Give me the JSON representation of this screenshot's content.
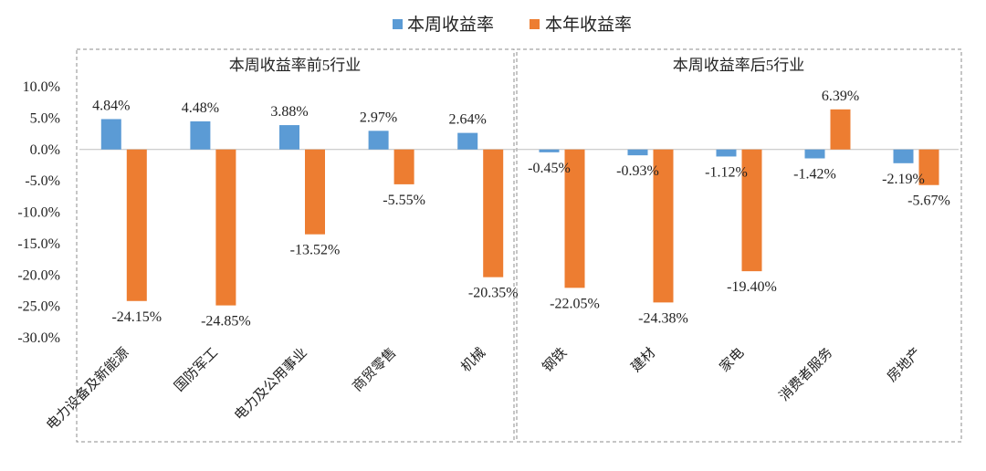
{
  "legend": {
    "weekly": "本周收益率",
    "yearly": "本年收益率"
  },
  "colors": {
    "weekly": "#5B9BD5",
    "yearly": "#ED7D31",
    "grid": "#BFBFBF",
    "panel_border": "#8C8C8C"
  },
  "chart_data": {
    "type": "bar",
    "ylim": [
      -30,
      10
    ],
    "y_ticks": [
      "10.0%",
      "5.0%",
      "0.0%",
      "-5.0%",
      "-10.0%",
      "-15.0%",
      "-20.0%",
      "-25.0%",
      "-30.0%"
    ],
    "y_tick_values": [
      10,
      5,
      0,
      -5,
      -10,
      -15,
      -20,
      -25,
      -30
    ],
    "panels": [
      {
        "title": "本周收益率前5行业",
        "categories": [
          "电力设备及新能源",
          "国防军工",
          "电力及公用事业",
          "商贸零售",
          "机械"
        ],
        "series": [
          {
            "name": "本周收益率",
            "values": [
              4.84,
              4.48,
              3.88,
              2.97,
              2.64
            ],
            "labels": [
              "4.84%",
              "4.48%",
              "3.88%",
              "2.97%",
              "2.64%"
            ]
          },
          {
            "name": "本年收益率",
            "values": [
              -24.15,
              -24.85,
              -13.52,
              -5.55,
              -20.35
            ],
            "labels": [
              "-24.15%",
              "-24.85%",
              "-13.52%",
              "-5.55%",
              "-20.35%"
            ]
          }
        ]
      },
      {
        "title": "本周收益率后5行业",
        "categories": [
          "钢铁",
          "建材",
          "家电",
          "消费者服务",
          "房地产"
        ],
        "series": [
          {
            "name": "本周收益率",
            "values": [
              -0.45,
              -0.93,
              -1.12,
              -1.42,
              -2.19
            ],
            "labels": [
              "-0.45%",
              "-0.93%",
              "-1.12%",
              "-1.42%",
              "-2.19%"
            ]
          },
          {
            "name": "本年收益率",
            "values": [
              -22.05,
              -24.38,
              -19.4,
              6.39,
              -5.67
            ],
            "labels": [
              "-22.05%",
              "-24.38%",
              "-19.40%",
              "6.39%",
              "-5.67%"
            ]
          }
        ]
      }
    ]
  }
}
